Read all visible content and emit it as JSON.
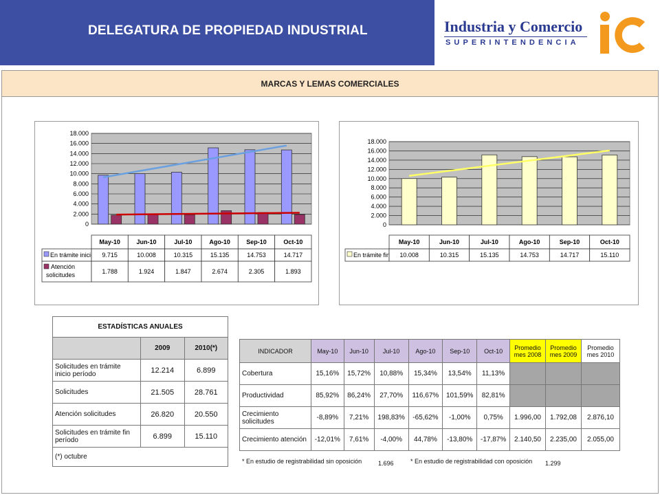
{
  "header": {
    "title": "DELEGATURA DE PROPIEDAD INDUSTRIAL",
    "brand_name": "Industria y Comercio",
    "brand_sub": "SUPERINTENDENCIA"
  },
  "banner": {
    "title": "MARCAS Y LEMAS COMERCIALES"
  },
  "colors": {
    "header_bg": "#3d4fa3",
    "banner_bg": "#fce4c6",
    "bar_blue": "#9999ff",
    "bar_maroon": "#993366",
    "bar_yellow": "#ffffcc",
    "trend_blue": "#6aa0e0",
    "trend_red": "#cc0000",
    "trend_yellow": "#ffff66",
    "plot_bg": "#c0c0c0",
    "highlight_yellow": "#ffff00"
  },
  "chart_data": [
    {
      "type": "bar",
      "categories": [
        "May-10",
        "Jun-10",
        "Jul-10",
        "Ago-10",
        "Sep-10",
        "Oct-10"
      ],
      "ylim": [
        0,
        18000
      ],
      "yticks": [
        "0",
        "2.000",
        "4.000",
        "6.000",
        "8.000",
        "10.000",
        "12.000",
        "14.000",
        "16.000",
        "18.000"
      ],
      "grid": true,
      "trendlines": true,
      "series": [
        {
          "name": "En trámite inicio",
          "values": [
            9715,
            10008,
            10315,
            15135,
            14753,
            14717
          ],
          "labels": [
            "9.715",
            "10.008",
            "10.315",
            "15.135",
            "14.753",
            "14.717"
          ]
        },
        {
          "name": "Atención solicitudes",
          "values": [
            1788,
            1924,
            1847,
            2674,
            2305,
            1893
          ],
          "labels": [
            "1.788",
            "1.924",
            "1.847",
            "2.674",
            "2.305",
            "1.893"
          ]
        }
      ]
    },
    {
      "type": "bar",
      "categories": [
        "May-10",
        "Jun-10",
        "Jul-10",
        "Ago-10",
        "Sep-10",
        "Oct-10"
      ],
      "ylim": [
        0,
        18000
      ],
      "yticks": [
        "0",
        "2.000",
        "4.000",
        "6.000",
        "8.000",
        "10.000",
        "12.000",
        "14.000",
        "16.000",
        "18.000"
      ],
      "grid": true,
      "trendlines": true,
      "series": [
        {
          "name": "En trámite fin",
          "values": [
            10008,
            10315,
            15135,
            14753,
            14717,
            15110
          ],
          "labels": [
            "10.008",
            "10.315",
            "15.135",
            "14.753",
            "14.717",
            "15.110"
          ]
        }
      ]
    }
  ],
  "annual": {
    "title": "ESTADÍSTICAS ANUALES",
    "col_2009": "2009",
    "col_2010": "2010(*)",
    "rows": [
      {
        "label": "Solicitudes en trámite inicio período",
        "v2009": "12.214",
        "v2010": "6.899"
      },
      {
        "label": "Solicitudes",
        "v2009": "21.505",
        "v2010": "28.761"
      },
      {
        "label": "Atención solicitudes",
        "v2009": "26.820",
        "v2010": "20.550"
      },
      {
        "label": "Solicitudes en trámite fin período",
        "v2009": "6.899",
        "v2010": "15.110"
      }
    ],
    "note": "(*) octubre"
  },
  "indicators": {
    "header": [
      "INDICADOR",
      "May-10",
      "Jun-10",
      "Jul-10",
      "Ago-10",
      "Sep-10",
      "Oct-10",
      "Promedio mes 2008",
      "Promedio mes 2009",
      "Promedio mes 2010"
    ],
    "rows": [
      {
        "label": "Cobertura",
        "values": [
          "15,16%",
          "15,72%",
          "10,88%",
          "15,34%",
          "13,54%",
          "11,13%"
        ],
        "avg": [
          "",
          "",
          ""
        ]
      },
      {
        "label": "Productividad",
        "values": [
          "85,92%",
          "86,24%",
          "27,70%",
          "116,67%",
          "101,59%",
          "82,81%"
        ],
        "avg": [
          "",
          "",
          ""
        ]
      },
      {
        "label": "Crecimiento solicitudes",
        "values": [
          "-8,89%",
          "7,21%",
          "198,83%",
          "-65,62%",
          "-1,00%",
          "0,75%"
        ],
        "avg": [
          "1.996,00",
          "1.792,08",
          "2.876,10"
        ]
      },
      {
        "label": "Crecimiento atención",
        "values": [
          "-12,01%",
          "7,61%",
          "-4,00%",
          "44,78%",
          "-13,80%",
          "-17,87%"
        ],
        "avg": [
          "2.140,50",
          "2.235,00",
          "2.055,00"
        ]
      }
    ]
  },
  "footnotes": {
    "sin_label": "* En estudio de registrabilidad sin oposición",
    "sin_value": "1.696",
    "con_label": "* En estudio de registrabilidad con oposición",
    "con_value": "1.299"
  },
  "icons": {
    "logo": "sic-logo"
  }
}
